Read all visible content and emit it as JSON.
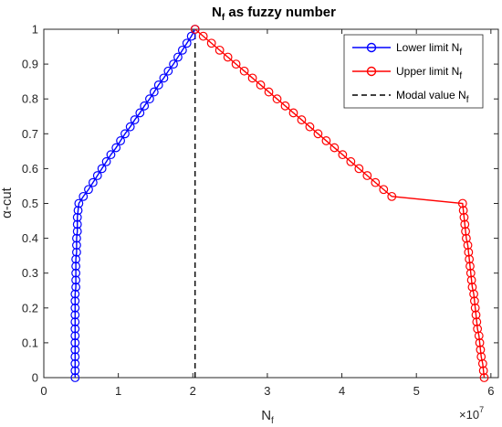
{
  "chart_data": {
    "type": "line",
    "title": {
      "main": "N",
      "sub": "f",
      "rest": " as fuzzy number"
    },
    "xlabel": {
      "main": "N",
      "sub": "f"
    },
    "ylabel": "α-cut",
    "x_multiplier": "×10",
    "x_multiplier_exp": "7",
    "xlim": [
      0,
      6.1
    ],
    "ylim": [
      0,
      1
    ],
    "xticks": [
      0,
      1,
      2,
      3,
      4,
      5,
      6
    ],
    "yticks": [
      0,
      0.1,
      0.2,
      0.3,
      0.4,
      0.5,
      0.6,
      0.7,
      0.8,
      0.9,
      1
    ],
    "xtick_labels": [
      "0",
      "1",
      "2",
      "3",
      "4",
      "5",
      "6"
    ],
    "ytick_labels": [
      "0",
      "0.1",
      "0.2",
      "0.3",
      "0.4",
      "0.5",
      "0.6",
      "0.7",
      "0.8",
      "0.9",
      "1"
    ],
    "units_note": "x values in units of 10^7",
    "grid": false,
    "legend_position": "top-right",
    "series": [
      {
        "name": {
          "main": "Lower limit N",
          "sub": "f"
        },
        "color": "#0000ff",
        "marker": "circle",
        "points": [
          [
            0.42,
            0.0
          ],
          [
            0.42,
            0.02
          ],
          [
            0.42,
            0.04
          ],
          [
            0.42,
            0.06
          ],
          [
            0.42,
            0.08
          ],
          [
            0.42,
            0.1
          ],
          [
            0.42,
            0.12
          ],
          [
            0.42,
            0.14
          ],
          [
            0.42,
            0.16
          ],
          [
            0.42,
            0.18
          ],
          [
            0.42,
            0.2
          ],
          [
            0.42,
            0.22
          ],
          [
            0.42,
            0.24
          ],
          [
            0.43,
            0.26
          ],
          [
            0.43,
            0.28
          ],
          [
            0.43,
            0.3
          ],
          [
            0.43,
            0.32
          ],
          [
            0.43,
            0.34
          ],
          [
            0.44,
            0.36
          ],
          [
            0.44,
            0.38
          ],
          [
            0.44,
            0.4
          ],
          [
            0.45,
            0.42
          ],
          [
            0.45,
            0.44
          ],
          [
            0.45,
            0.46
          ],
          [
            0.46,
            0.48
          ],
          [
            0.47,
            0.5
          ],
          [
            0.53,
            0.52
          ],
          [
            0.6,
            0.54
          ],
          [
            0.66,
            0.56
          ],
          [
            0.72,
            0.58
          ],
          [
            0.78,
            0.6
          ],
          [
            0.84,
            0.62
          ],
          [
            0.9,
            0.64
          ],
          [
            0.97,
            0.66
          ],
          [
            1.03,
            0.68
          ],
          [
            1.09,
            0.7
          ],
          [
            1.16,
            0.72
          ],
          [
            1.22,
            0.74
          ],
          [
            1.29,
            0.76
          ],
          [
            1.35,
            0.78
          ],
          [
            1.42,
            0.8
          ],
          [
            1.48,
            0.82
          ],
          [
            1.54,
            0.84
          ],
          [
            1.61,
            0.86
          ],
          [
            1.67,
            0.88
          ],
          [
            1.74,
            0.9
          ],
          [
            1.8,
            0.92
          ],
          [
            1.86,
            0.94
          ],
          [
            1.92,
            0.96
          ],
          [
            1.98,
            0.98
          ],
          [
            2.03,
            1.0
          ]
        ]
      },
      {
        "name": {
          "main": "Upper limit N",
          "sub": "f"
        },
        "color": "#ff0000",
        "marker": "circle",
        "points": [
          [
            2.03,
            1.0
          ],
          [
            2.14,
            0.98
          ],
          [
            2.25,
            0.96
          ],
          [
            2.36,
            0.94
          ],
          [
            2.47,
            0.92
          ],
          [
            2.58,
            0.9
          ],
          [
            2.69,
            0.88
          ],
          [
            2.8,
            0.86
          ],
          [
            2.91,
            0.84
          ],
          [
            3.02,
            0.82
          ],
          [
            3.13,
            0.8
          ],
          [
            3.24,
            0.78
          ],
          [
            3.35,
            0.76
          ],
          [
            3.46,
            0.74
          ],
          [
            3.57,
            0.72
          ],
          [
            3.68,
            0.7
          ],
          [
            3.79,
            0.68
          ],
          [
            3.9,
            0.66
          ],
          [
            4.01,
            0.64
          ],
          [
            4.12,
            0.62
          ],
          [
            4.23,
            0.6
          ],
          [
            4.34,
            0.58
          ],
          [
            4.45,
            0.56
          ],
          [
            4.56,
            0.54
          ],
          [
            4.67,
            0.52
          ],
          [
            5.62,
            0.5
          ],
          [
            5.63,
            0.48
          ],
          [
            5.64,
            0.46
          ],
          [
            5.65,
            0.44
          ],
          [
            5.66,
            0.42
          ],
          [
            5.67,
            0.4
          ],
          [
            5.69,
            0.38
          ],
          [
            5.7,
            0.36
          ],
          [
            5.71,
            0.34
          ],
          [
            5.72,
            0.32
          ],
          [
            5.73,
            0.3
          ],
          [
            5.74,
            0.28
          ],
          [
            5.75,
            0.26
          ],
          [
            5.77,
            0.24
          ],
          [
            5.78,
            0.22
          ],
          [
            5.79,
            0.2
          ],
          [
            5.8,
            0.18
          ],
          [
            5.81,
            0.16
          ],
          [
            5.82,
            0.14
          ],
          [
            5.84,
            0.12
          ],
          [
            5.85,
            0.1
          ],
          [
            5.86,
            0.08
          ],
          [
            5.87,
            0.06
          ],
          [
            5.89,
            0.04
          ],
          [
            5.9,
            0.02
          ],
          [
            5.91,
            0.0
          ]
        ]
      },
      {
        "name": {
          "main": "Modal value N",
          "sub": "f"
        },
        "color": "#000000",
        "marker": "none",
        "dashed": true,
        "points": [
          [
            2.03,
            0
          ],
          [
            2.03,
            1
          ]
        ]
      }
    ]
  }
}
